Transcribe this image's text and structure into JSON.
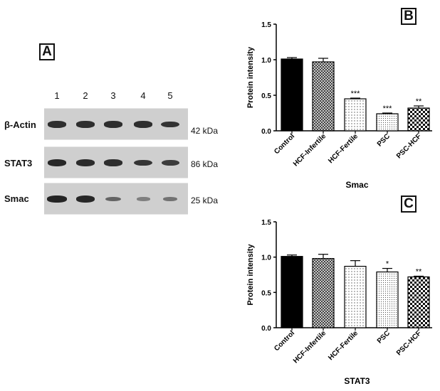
{
  "panel_labels": {
    "a": "A",
    "b": "B",
    "c": "C"
  },
  "western_blot": {
    "lanes": [
      "1",
      "2",
      "3",
      "4",
      "5"
    ],
    "rows": [
      {
        "label": "β-Actin",
        "kda": "42 kDa",
        "band_intensity": [
          0.85,
          0.85,
          0.85,
          0.85,
          0.82
        ]
      },
      {
        "label": "STAT3",
        "kda": "86 kDa",
        "band_intensity": [
          0.9,
          0.88,
          0.85,
          0.8,
          0.75
        ]
      },
      {
        "label": "Smac",
        "kda": "25 kDa",
        "band_intensity": [
          0.92,
          0.9,
          0.45,
          0.25,
          0.35
        ]
      }
    ]
  },
  "colors": {
    "band": "#1a1a1a",
    "strip": "#cfcfcf",
    "bar_edge": "#000000"
  },
  "chart_data": [
    {
      "type": "bar",
      "panel": "B",
      "title": "",
      "xlabel": "Smac",
      "ylabel": "Protein intensity",
      "ylim": [
        0,
        1.5
      ],
      "yticks": [
        "0.0",
        "0.5",
        "1.0",
        "1.5"
      ],
      "categories": [
        "Control",
        "HCF-Infertile",
        "HCF-Fertile",
        "PSC",
        "PSC-HCF"
      ],
      "values": [
        1.01,
        0.97,
        0.45,
        0.24,
        0.32
      ],
      "errors": [
        0.02,
        0.05,
        0.01,
        0.01,
        0.03
      ],
      "annotations": [
        "",
        "",
        "***",
        "***",
        "**"
      ],
      "fills": [
        "solid",
        "crosshatch",
        "dots",
        "fine-dots",
        "checker"
      ],
      "grid": false
    },
    {
      "type": "bar",
      "panel": "C",
      "title": "",
      "xlabel": "STAT3",
      "ylabel": "Protein intensity",
      "ylim": [
        0,
        1.5
      ],
      "yticks": [
        "0.0",
        "0.5",
        "1.0",
        "1.5"
      ],
      "categories": [
        "Control",
        "HCF-Infertile",
        "HCF-Fertile",
        "PSC",
        "PSC-HCF"
      ],
      "values": [
        1.01,
        0.98,
        0.87,
        0.79,
        0.72
      ],
      "errors": [
        0.02,
        0.06,
        0.08,
        0.05,
        0.01
      ],
      "annotations": [
        "",
        "",
        "",
        "*",
        "**"
      ],
      "fills": [
        "solid",
        "crosshatch",
        "dots",
        "fine-dots",
        "checker"
      ],
      "grid": false
    }
  ]
}
